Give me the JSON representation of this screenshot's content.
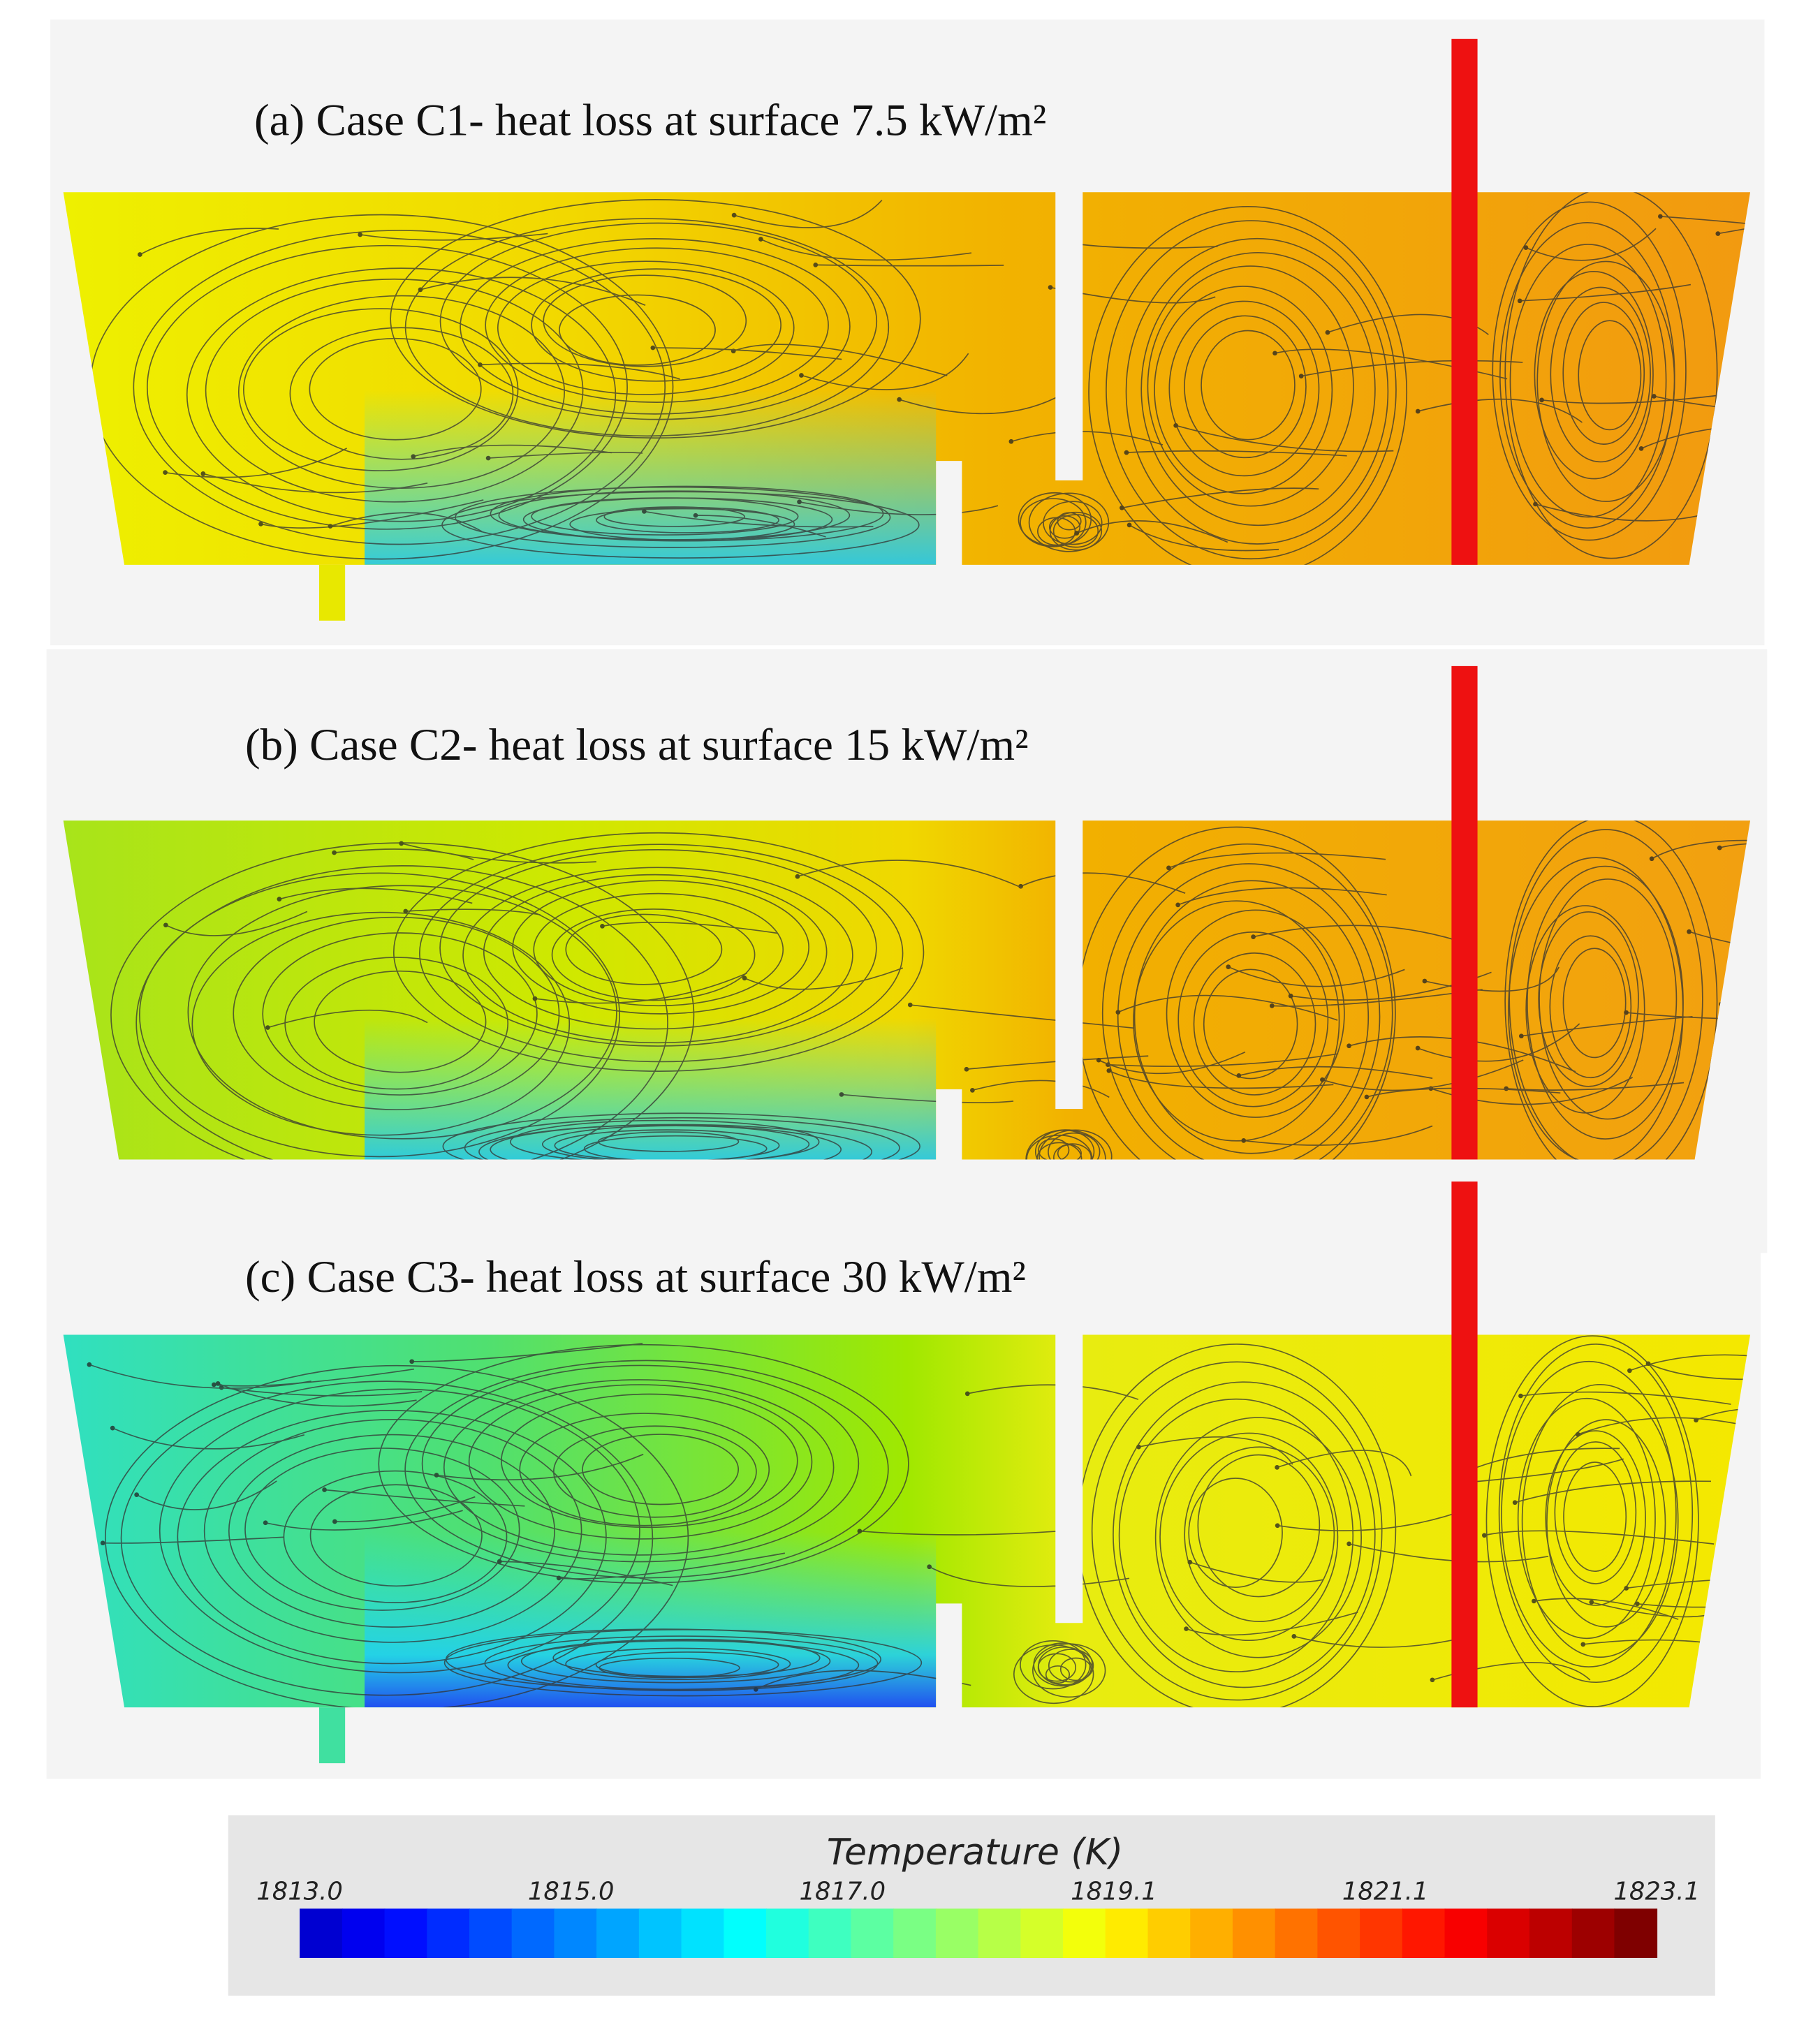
{
  "panels": [
    {
      "title": "(a) Case C1- heat loss at surface 7.5 kW/m²"
    },
    {
      "title": "(b) Case C2- heat loss at surface 15 kW/m²"
    },
    {
      "title": "(c) Case C3- heat loss at surface 30 kW/m²"
    }
  ],
  "colorbar": {
    "title": "Temperature (K)",
    "tick_labels": [
      "1813.0",
      "1815.0",
      "1817.0",
      "1819.1",
      "1821.1",
      "1823.1"
    ]
  }
}
